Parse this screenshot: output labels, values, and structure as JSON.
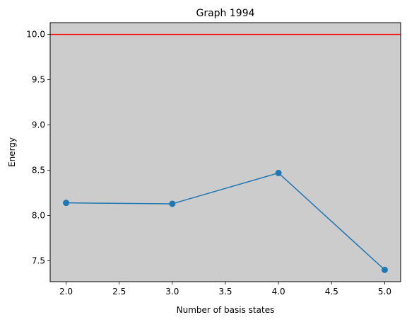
{
  "chart_data": {
    "type": "line",
    "title": "Graph 1994",
    "xlabel": "Number of basis states",
    "ylabel": "Energy",
    "xlim": [
      1.85,
      5.15
    ],
    "ylim": [
      7.27,
      10.13
    ],
    "x_ticks": [
      2.0,
      2.5,
      3.0,
      3.5,
      4.0,
      4.5,
      5.0
    ],
    "x_tick_labels": [
      "2.0",
      "2.5",
      "3.0",
      "3.5",
      "4.0",
      "4.5",
      "5.0"
    ],
    "y_ticks": [
      7.5,
      8.0,
      8.5,
      9.0,
      9.5,
      10.0
    ],
    "y_tick_labels": [
      "7.5",
      "8.0",
      "8.5",
      "9.0",
      "9.5",
      "10.0"
    ],
    "grid": false,
    "background_color": "#cccccc",
    "series": [
      {
        "x": [
          2,
          3,
          4,
          5
        ],
        "values": [
          8.14,
          8.13,
          8.47,
          7.4
        ],
        "color": "#1f77b4",
        "marker": "circle"
      }
    ],
    "reference_lines": [
      {
        "orientation": "horizontal",
        "y": 10.0,
        "color": "#ff0000"
      }
    ]
  }
}
